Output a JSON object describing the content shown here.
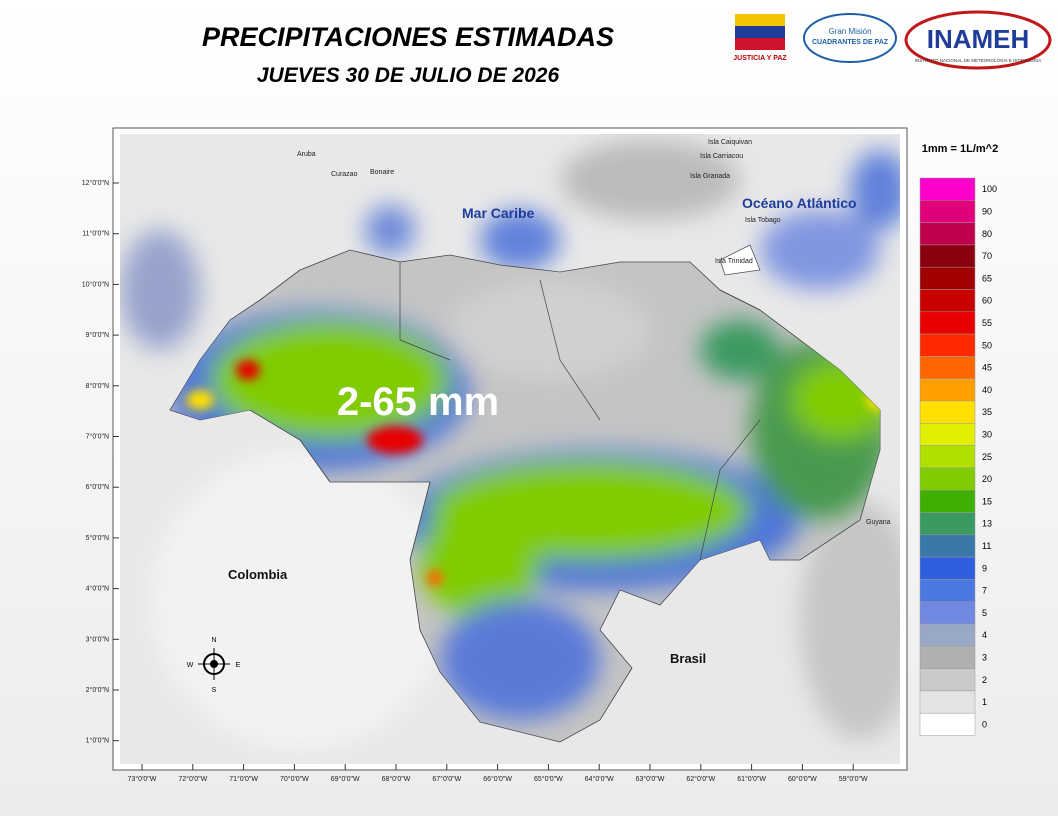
{
  "header": {
    "title": "PRECIPITACIONES ESTIMADAS",
    "subtitle": "JUEVES 30 DE JULIO DE 2026"
  },
  "logos": {
    "justicia": "JUSTICIA Y PAZ",
    "gran_mision": "Gran Misión",
    "cuadrantes": "CUADRANTES DE PAZ",
    "inameh": "INAMEH",
    "inameh_full": "INSTITUTO NACIONAL DE METEOROLOGIA E HIDROLOGIA"
  },
  "map": {
    "range_label": "2-65 mm",
    "places": {
      "aruba": "Aruba",
      "curazao": "Curazao",
      "bonaire": "Bonaire",
      "caiquivan": "Isla Caiquivan",
      "carriacou": "Isla Carriacou",
      "granada": "Isla Granada",
      "tobago": "Isla Tobago",
      "trinidad": "Isla Trinidad",
      "mar_caribe": "Mar Caribe",
      "oceano": "Océano Atlántico",
      "colombia": "Colombia",
      "brasil": "Brasil",
      "guyana": "Guyana"
    },
    "compass": {
      "n": "N",
      "s": "S",
      "e": "E",
      "w": "W"
    },
    "lat_labels": [
      "12°0'0\"N",
      "11°0'0\"N",
      "10°0'0\"N",
      "9°0'0\"N",
      "8°0'0\"N",
      "7°0'0\"N",
      "6°0'0\"N",
      "5°0'0\"N",
      "4°0'0\"N",
      "3°0'0\"N",
      "2°0'0\"N",
      "1°0'0\"N"
    ],
    "lon_labels": [
      "73°0'0\"W",
      "72°0'0\"W",
      "71°0'0\"W",
      "70°0'0\"W",
      "69°0'0\"W",
      "68°0'0\"W",
      "67°0'0\"W",
      "66°0'0\"W",
      "65°0'0\"W",
      "64°0'0\"W",
      "63°0'0\"W",
      "62°0'0\"W",
      "61°0'0\"W",
      "60°0'0\"W",
      "59°0'0\"W"
    ]
  },
  "legend": {
    "title": "1mm = 1L/m^2",
    "items": [
      {
        "value": 100,
        "color": "#ff00cc"
      },
      {
        "value": 90,
        "color": "#e0007a"
      },
      {
        "value": 80,
        "color": "#c0004e"
      },
      {
        "value": 70,
        "color": "#8b0010"
      },
      {
        "value": 65,
        "color": "#a00000"
      },
      {
        "value": 60,
        "color": "#c80000"
      },
      {
        "value": 55,
        "color": "#e80000"
      },
      {
        "value": 50,
        "color": "#ff2a00"
      },
      {
        "value": 45,
        "color": "#ff6600"
      },
      {
        "value": 40,
        "color": "#ffa000"
      },
      {
        "value": 35,
        "color": "#ffe000"
      },
      {
        "value": 30,
        "color": "#e0f000"
      },
      {
        "value": 25,
        "color": "#b0e000"
      },
      {
        "value": 20,
        "color": "#80cc00"
      },
      {
        "value": 15,
        "color": "#40b000"
      },
      {
        "value": 13,
        "color": "#3a9a60"
      },
      {
        "value": 11,
        "color": "#3a78a8"
      },
      {
        "value": 9,
        "color": "#2f5fe0"
      },
      {
        "value": 7,
        "color": "#4a78e0"
      },
      {
        "value": 5,
        "color": "#7088e0"
      },
      {
        "value": 4,
        "color": "#9aa8c8"
      },
      {
        "value": 3,
        "color": "#b0b0b0"
      },
      {
        "value": 2,
        "color": "#cacaca"
      },
      {
        "value": 1,
        "color": "#e4e4e4"
      },
      {
        "value": 0,
        "color": "#ffffff"
      }
    ]
  }
}
